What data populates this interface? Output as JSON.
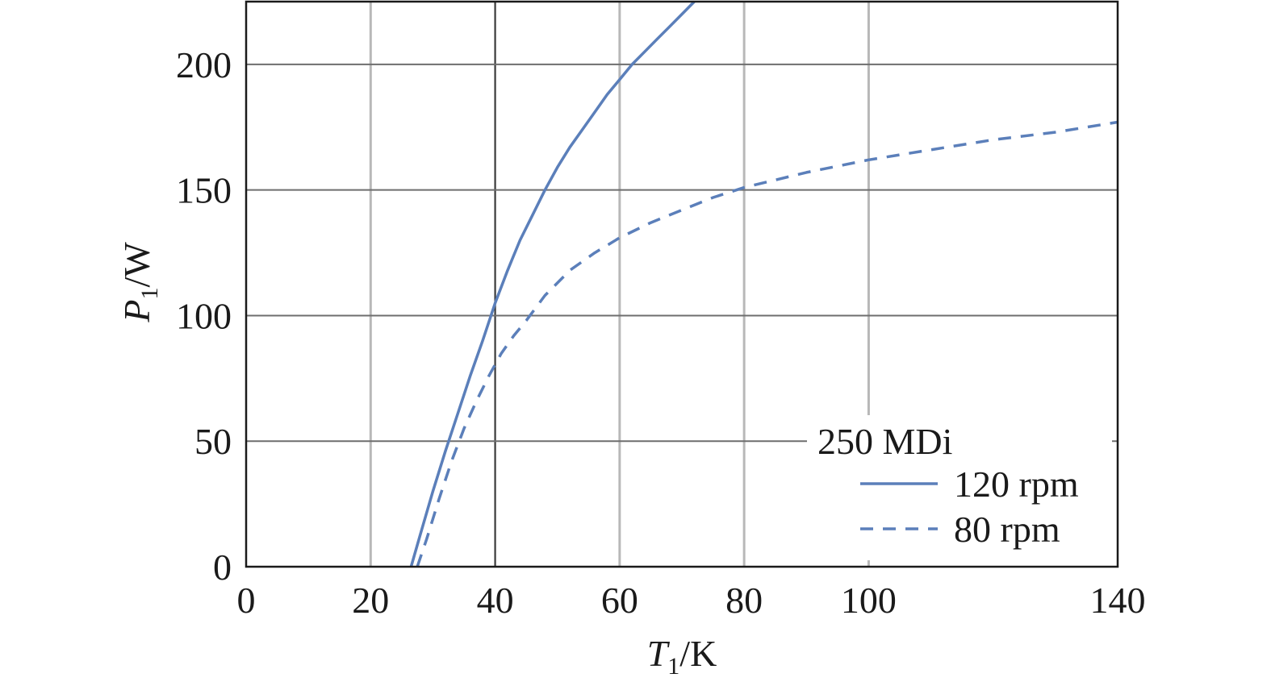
{
  "chart_data": {
    "type": "line",
    "xlabel": {
      "var": "T",
      "sub": "1",
      "unit": "/K"
    },
    "ylabel": {
      "var": "P",
      "sub": "1",
      "unit": "/W"
    },
    "xlim": [
      0,
      140
    ],
    "ylim": [
      0,
      225
    ],
    "x_ticks": [
      0,
      20,
      40,
      60,
      80,
      100,
      140
    ],
    "y_ticks": [
      0,
      50,
      100,
      150,
      200
    ],
    "grid": true,
    "legend": {
      "title": "250 MDi",
      "position": "bottom-right"
    },
    "series": [
      {
        "name": "120 rpm",
        "style": "solid",
        "color": "#5b7fba",
        "x": [
          26.5,
          28,
          30,
          32,
          34,
          36,
          38,
          40,
          42,
          44,
          46,
          48,
          50,
          52,
          54,
          56,
          58,
          60,
          62,
          64,
          66,
          68,
          70,
          72
        ],
        "y": [
          0,
          13,
          30,
          46,
          61,
          76,
          90,
          105,
          118,
          130,
          140,
          150,
          159,
          167,
          174,
          181,
          188,
          194,
          200,
          205,
          210,
          215,
          220,
          225
        ]
      },
      {
        "name": "80 rpm",
        "style": "dashed",
        "color": "#5b7fba",
        "x": [
          27.5,
          29,
          31,
          33,
          35,
          37,
          39,
          41,
          43,
          45,
          48,
          52,
          56,
          60,
          65,
          70,
          75,
          80,
          90,
          100,
          110,
          120,
          130,
          140
        ],
        "y": [
          0,
          11,
          27,
          42,
          55,
          66,
          76,
          85,
          92,
          98,
          108,
          118,
          125,
          131,
          137,
          142,
          147,
          151,
          157,
          162,
          166,
          170,
          173,
          177
        ]
      }
    ]
  }
}
